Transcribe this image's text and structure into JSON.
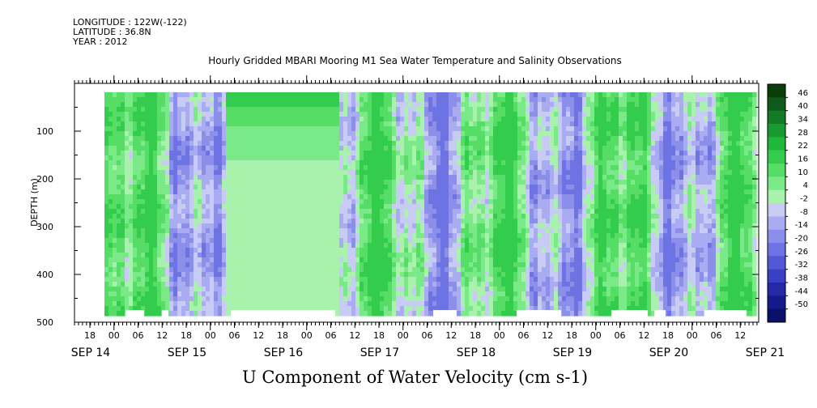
{
  "header": {
    "longitude": "LONGITUDE : 122W(-122)",
    "latitude": "LATITUDE : 36.8N",
    "year": "YEAR : 2012"
  },
  "chart_data": {
    "type": "heatmap",
    "title": "Hourly Gridded MBARI Mooring M1 Sea Water Temperature and Salinity Observations",
    "xlabel": "U Component of Water Velocity (cm s-1)",
    "ylabel": "DEPTH (m)",
    "ylim": [
      0,
      500
    ],
    "y_inverted": true,
    "yticks": [
      100,
      200,
      300,
      400,
      500
    ],
    "x_hour_ticks": [
      "18",
      "00",
      "06",
      "12",
      "18",
      "00",
      "06",
      "12",
      "18",
      "00",
      "06",
      "12",
      "18",
      "00",
      "06",
      "12",
      "18",
      "00",
      "06",
      "12",
      "18",
      "00",
      "06",
      "12",
      "18",
      "00",
      "06",
      "12",
      "18",
      "00",
      "06",
      "12"
    ],
    "x_day_labels": [
      "SEP 14",
      "SEP 15",
      "SEP 16",
      "SEP 17",
      "SEP 18",
      "SEP 19",
      "SEP 20",
      "SEP 21"
    ],
    "colorbar": {
      "labels": [
        "46",
        "40",
        "34",
        "28",
        "22",
        "16",
        "10",
        "4",
        "-2",
        "-8",
        "-14",
        "-20",
        "-26",
        "-32",
        "-38",
        "-44",
        "-50"
      ],
      "colors": [
        "#0b3d0b",
        "#0f5a1a",
        "#137a26",
        "#189a30",
        "#1fb83a",
        "#33cc4d",
        "#55dd66",
        "#7aea88",
        "#a8f2ae",
        "#c8ccf5",
        "#a9acf0",
        "#8b8fea",
        "#6e73e3",
        "#5258d6",
        "#3a40c4",
        "#2529a8",
        "#141a8a",
        "#0a0f6a"
      ]
    },
    "grid": false,
    "description_levels": [
      "green positive velocities",
      "blue negative velocities"
    ]
  }
}
